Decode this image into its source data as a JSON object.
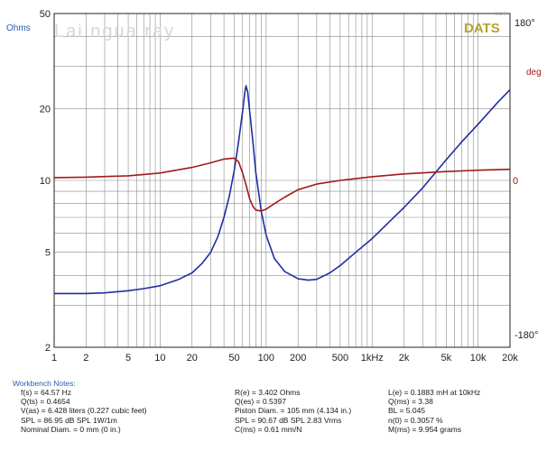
{
  "chart_data": {
    "type": "line",
    "watermark": "Lai ngua ray",
    "brand": "DATS",
    "brand_version": "3.1.6",
    "left_axis": {
      "label": "Ohms",
      "scale": "log",
      "range": [
        2,
        50
      ],
      "ticks": [
        {
          "value": 2,
          "label": "2"
        },
        {
          "value": 5,
          "label": "5"
        },
        {
          "value": 10,
          "label": "10"
        },
        {
          "value": 20,
          "label": "20"
        },
        {
          "value": 50,
          "label": "50"
        }
      ]
    },
    "right_axis": {
      "label": "deg",
      "range": [
        -180,
        180
      ],
      "ticks": [
        {
          "value": 180,
          "label": "180°"
        },
        {
          "value": 0,
          "label": "0"
        },
        {
          "value": -180,
          "label": "-180°"
        }
      ]
    },
    "x_axis": {
      "scale": "log",
      "range": [
        1,
        20000
      ],
      "ticks": [
        {
          "value": 1,
          "label": "1"
        },
        {
          "value": 2,
          "label": "2"
        },
        {
          "value": 5,
          "label": "5"
        },
        {
          "value": 10,
          "label": "10"
        },
        {
          "value": 20,
          "label": "20"
        },
        {
          "value": 50,
          "label": "50"
        },
        {
          "value": 100,
          "label": "100"
        },
        {
          "value": 200,
          "label": "200"
        },
        {
          "value": 500,
          "label": "500"
        },
        {
          "value": 1000,
          "label": "1kHz"
        },
        {
          "value": 2000,
          "label": "2k"
        },
        {
          "value": 5000,
          "label": "5k"
        },
        {
          "value": 10000,
          "label": "10k"
        },
        {
          "value": 20000,
          "label": "20k"
        }
      ]
    },
    "grid": true,
    "series": [
      {
        "kind": "impedance",
        "color": "#1f2ea0",
        "axis": "left",
        "points": [
          [
            1,
            3.36
          ],
          [
            2,
            3.36
          ],
          [
            3,
            3.38
          ],
          [
            5,
            3.45
          ],
          [
            7,
            3.52
          ],
          [
            10,
            3.62
          ],
          [
            15,
            3.85
          ],
          [
            20,
            4.1
          ],
          [
            25,
            4.5
          ],
          [
            30,
            5.0
          ],
          [
            35,
            5.8
          ],
          [
            40,
            7.0
          ],
          [
            45,
            8.6
          ],
          [
            50,
            11.0
          ],
          [
            55,
            14.5
          ],
          [
            60,
            19.5
          ],
          [
            63,
            23.5
          ],
          [
            64.57,
            24.9
          ],
          [
            67,
            23.5
          ],
          [
            70,
            19.5
          ],
          [
            75,
            14.5
          ],
          [
            80,
            10.8
          ],
          [
            90,
            7.4
          ],
          [
            100,
            5.9
          ],
          [
            120,
            4.7
          ],
          [
            150,
            4.15
          ],
          [
            200,
            3.87
          ],
          [
            250,
            3.82
          ],
          [
            300,
            3.85
          ],
          [
            400,
            4.1
          ],
          [
            500,
            4.4
          ],
          [
            700,
            5.0
          ],
          [
            1000,
            5.7
          ],
          [
            1500,
            6.8
          ],
          [
            2000,
            7.7
          ],
          [
            3000,
            9.3
          ],
          [
            5000,
            12.2
          ],
          [
            7000,
            14.5
          ],
          [
            10000,
            17.2
          ],
          [
            15000,
            21.0
          ],
          [
            20000,
            24.0
          ]
        ]
      },
      {
        "kind": "phase",
        "color": "#a01a1a",
        "axis": "right",
        "points": [
          [
            1,
            3
          ],
          [
            2,
            3.5
          ],
          [
            5,
            5
          ],
          [
            10,
            8
          ],
          [
            20,
            14
          ],
          [
            30,
            19
          ],
          [
            40,
            23
          ],
          [
            50,
            24
          ],
          [
            55,
            20
          ],
          [
            60,
            8
          ],
          [
            65,
            -6
          ],
          [
            70,
            -20
          ],
          [
            75,
            -28
          ],
          [
            80,
            -32
          ],
          [
            90,
            -33
          ],
          [
            100,
            -31
          ],
          [
            120,
            -25
          ],
          [
            150,
            -18
          ],
          [
            200,
            -10
          ],
          [
            300,
            -4
          ],
          [
            500,
            0
          ],
          [
            1000,
            4
          ],
          [
            2000,
            7
          ],
          [
            5000,
            9.5
          ],
          [
            10000,
            11
          ],
          [
            20000,
            12
          ]
        ]
      }
    ]
  },
  "workbench": {
    "title": "Workbench Notes:",
    "col1": [
      "f(s) = 64.57 Hz",
      "Q(ts) = 0.4654",
      "V(as) = 6.428 liters  (0.227 cubic feet)",
      "SPL = 86.95 dB SPL 1W/1m",
      "Nominal Diam. = 0 mm (0 in.)"
    ],
    "col2": [
      "R(e) = 3.402 Ohms",
      "Q(es) = 0.5397",
      "Piston Diam. = 105 mm (4.134 in.)",
      "SPL = 90.67 dB SPL 2.83 Vrms",
      "C(ms) = 0.61 mm/N"
    ],
    "col3": [
      "L(e) = 0.1883 mH at 10kHz",
      "Q(ms) = 3.38",
      "BL = 5.045",
      "n(0) = 0.3057 %",
      "M(ms) = 9.954 grams"
    ]
  }
}
